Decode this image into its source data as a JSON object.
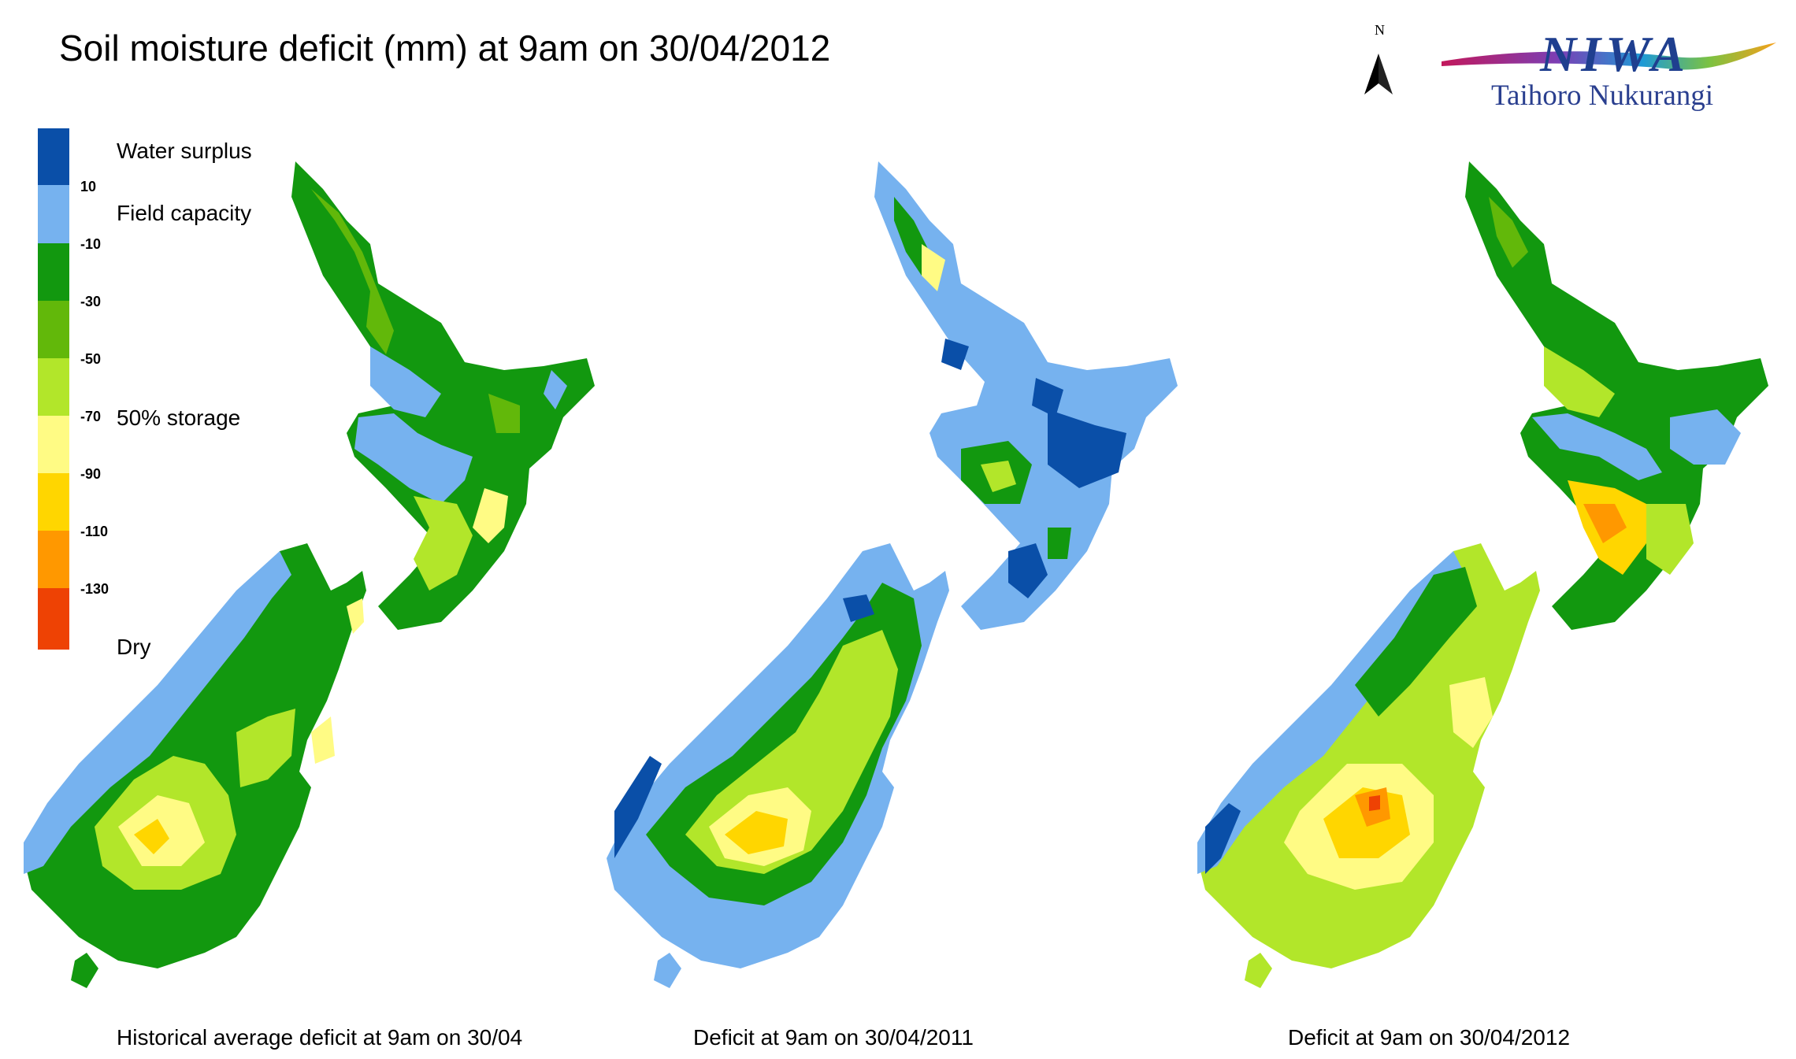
{
  "title": "Soil moisture deficit (mm) at  9am on 30/04/2012",
  "north_label": "N",
  "logo": {
    "name": "NIWA",
    "subtitle": "Taihoro Nukurangi"
  },
  "legend": {
    "classes": [
      {
        "color": "#0a4fa8"
      },
      {
        "color": "#76b2ef"
      },
      {
        "color": "#12980f"
      },
      {
        "color": "#62b80a"
      },
      {
        "color": "#b2e62a"
      },
      {
        "color": "#fffb84"
      },
      {
        "color": "#ffd600"
      },
      {
        "color": "#ff9800"
      },
      {
        "color": "#ee4204"
      }
    ],
    "ticks": [
      "10",
      "-10",
      "-30",
      "-50",
      "-70",
      "-90",
      "-110",
      "-130"
    ],
    "descriptors": {
      "surplus": "Water surplus",
      "field": "Field capacity",
      "storage": "50% storage",
      "dry": "Dry"
    }
  },
  "maps": [
    {
      "caption": "Historical average deficit at  9am on 30/04"
    },
    {
      "caption": "Deficit at  9am on 30/04/2011"
    },
    {
      "caption": "Deficit at  9am on 30/04/2012"
    }
  ]
}
